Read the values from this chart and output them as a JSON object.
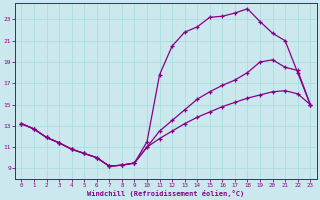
{
  "background_color": "#cce8ef",
  "line_color": "#880088",
  "grid_color": "#aadddd",
  "xlabel": "Windchill (Refroidissement éolien,°C)",
  "xlim": [
    -0.5,
    23.5
  ],
  "ylim": [
    8.0,
    24.5
  ],
  "yticks": [
    9,
    11,
    13,
    15,
    17,
    19,
    21,
    23
  ],
  "xticks": [
    0,
    1,
    2,
    3,
    4,
    5,
    6,
    7,
    8,
    9,
    10,
    11,
    12,
    13,
    14,
    15,
    16,
    17,
    18,
    19,
    20,
    21,
    22,
    23
  ],
  "line1_x": [
    0,
    1,
    2,
    3,
    4,
    5,
    6,
    7,
    8,
    9,
    10,
    11,
    12,
    13,
    14,
    15,
    16,
    17,
    18,
    19,
    20,
    21,
    22,
    23
  ],
  "line1_y": [
    13.2,
    12.7,
    11.9,
    11.4,
    10.8,
    10.4,
    10.0,
    9.2,
    9.3,
    9.5,
    11.0,
    11.8,
    12.5,
    13.2,
    13.8,
    14.3,
    14.8,
    15.2,
    15.6,
    15.9,
    16.2,
    16.3,
    16.0,
    15.0
  ],
  "line2_x": [
    0,
    1,
    2,
    3,
    4,
    5,
    6,
    7,
    8,
    9,
    10,
    11,
    12,
    13,
    14,
    15,
    16,
    17,
    18,
    19,
    20,
    21,
    22,
    23
  ],
  "line2_y": [
    13.2,
    12.7,
    11.9,
    11.4,
    10.8,
    10.4,
    10.0,
    9.2,
    9.3,
    9.5,
    11.0,
    12.5,
    13.5,
    14.5,
    15.5,
    16.2,
    16.8,
    17.3,
    18.0,
    19.0,
    19.2,
    18.5,
    18.2,
    15.0
  ],
  "line3_x": [
    0,
    1,
    2,
    3,
    4,
    5,
    6,
    7,
    8,
    9,
    10,
    11,
    12,
    13,
    14,
    15,
    16,
    17,
    18,
    19,
    20,
    21,
    22,
    23
  ],
  "line3_y": [
    13.2,
    12.7,
    11.9,
    11.4,
    10.8,
    10.4,
    10.0,
    9.2,
    9.3,
    9.5,
    11.5,
    17.8,
    20.5,
    21.8,
    22.3,
    23.2,
    23.3,
    23.6,
    24.0,
    22.8,
    21.7,
    21.0,
    18.0,
    15.0
  ]
}
